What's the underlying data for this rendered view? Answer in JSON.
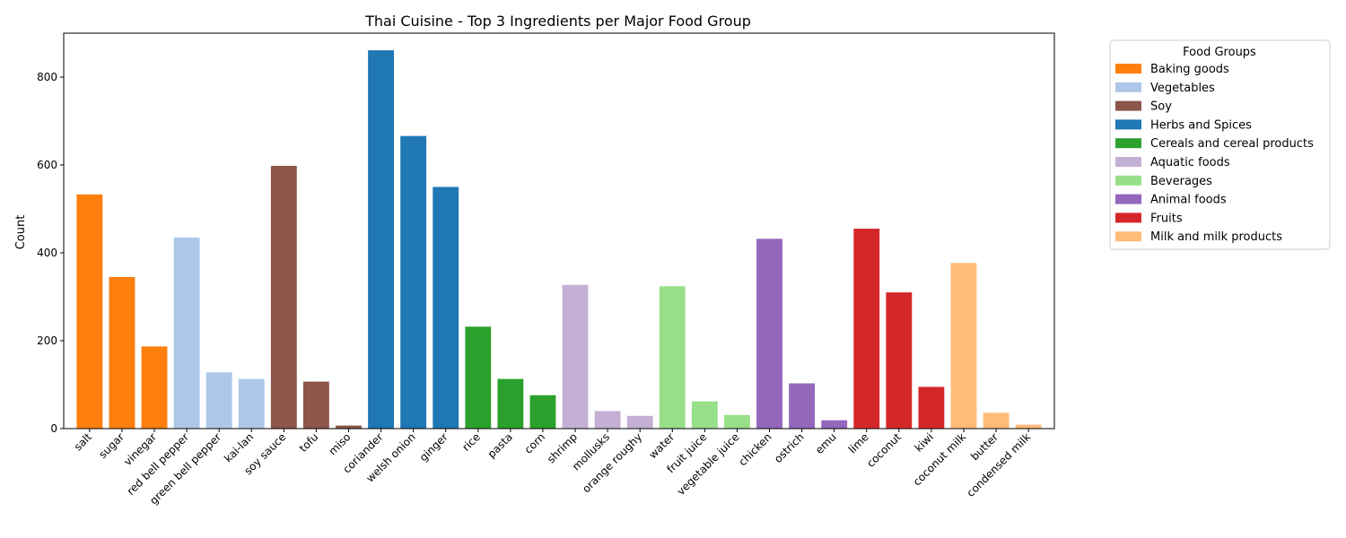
{
  "chart_data": {
    "type": "bar",
    "title": "Thai Cuisine - Top 3 Ingredients per Major Food Group",
    "xlabel": "",
    "ylabel": "Count",
    "ylim": [
      0,
      900
    ],
    "yticks": [
      0,
      200,
      400,
      600,
      800
    ],
    "grid": false,
    "legend_position": "outside-top-right",
    "legend_title": "Food Groups",
    "groups": [
      {
        "name": "Baking goods",
        "color": "#ff7f0e"
      },
      {
        "name": "Vegetables",
        "color": "#aec7e8"
      },
      {
        "name": "Soy",
        "color": "#8c564b"
      },
      {
        "name": "Herbs and Spices",
        "color": "#1f77b4"
      },
      {
        "name": "Cereals and cereal products",
        "color": "#2ca02c"
      },
      {
        "name": "Aquatic foods",
        "color": "#c5b0d5"
      },
      {
        "name": "Beverages",
        "color": "#98df8a"
      },
      {
        "name": "Animal foods",
        "color": "#9467bd"
      },
      {
        "name": "Fruits",
        "color": "#d62728"
      },
      {
        "name": "Milk and milk products",
        "color": "#ffbb78"
      }
    ],
    "bars": [
      {
        "category": "salt",
        "value": 533,
        "group": 0
      },
      {
        "category": "sugar",
        "value": 345,
        "group": 0
      },
      {
        "category": "vinegar",
        "value": 187,
        "group": 0
      },
      {
        "category": "red bell pepper",
        "value": 435,
        "group": 1
      },
      {
        "category": "green bell pepper",
        "value": 128,
        "group": 1
      },
      {
        "category": "kai-lan",
        "value": 113,
        "group": 1
      },
      {
        "category": "soy sauce",
        "value": 598,
        "group": 2
      },
      {
        "category": "tofu",
        "value": 107,
        "group": 2
      },
      {
        "category": "miso",
        "value": 7,
        "group": 2
      },
      {
        "category": "coriander",
        "value": 861,
        "group": 3
      },
      {
        "category": "welsh onion",
        "value": 666,
        "group": 3
      },
      {
        "category": "ginger",
        "value": 550,
        "group": 3
      },
      {
        "category": "rice",
        "value": 232,
        "group": 4
      },
      {
        "category": "pasta",
        "value": 113,
        "group": 4
      },
      {
        "category": "corn",
        "value": 76,
        "group": 4
      },
      {
        "category": "shrimp",
        "value": 327,
        "group": 5
      },
      {
        "category": "mollusks",
        "value": 40,
        "group": 5
      },
      {
        "category": "orange roughy",
        "value": 29,
        "group": 5
      },
      {
        "category": "water",
        "value": 324,
        "group": 6
      },
      {
        "category": "fruit juice",
        "value": 62,
        "group": 6
      },
      {
        "category": "vegetable juice",
        "value": 31,
        "group": 6
      },
      {
        "category": "chicken",
        "value": 432,
        "group": 7
      },
      {
        "category": "ostrich",
        "value": 103,
        "group": 7
      },
      {
        "category": "emu",
        "value": 19,
        "group": 7
      },
      {
        "category": "lime",
        "value": 455,
        "group": 8
      },
      {
        "category": "coconut",
        "value": 310,
        "group": 8
      },
      {
        "category": "kiwi",
        "value": 95,
        "group": 8
      },
      {
        "category": "coconut milk",
        "value": 377,
        "group": 9
      },
      {
        "category": "butter",
        "value": 36,
        "group": 9
      },
      {
        "category": "condensed milk",
        "value": 9,
        "group": 9
      }
    ]
  }
}
